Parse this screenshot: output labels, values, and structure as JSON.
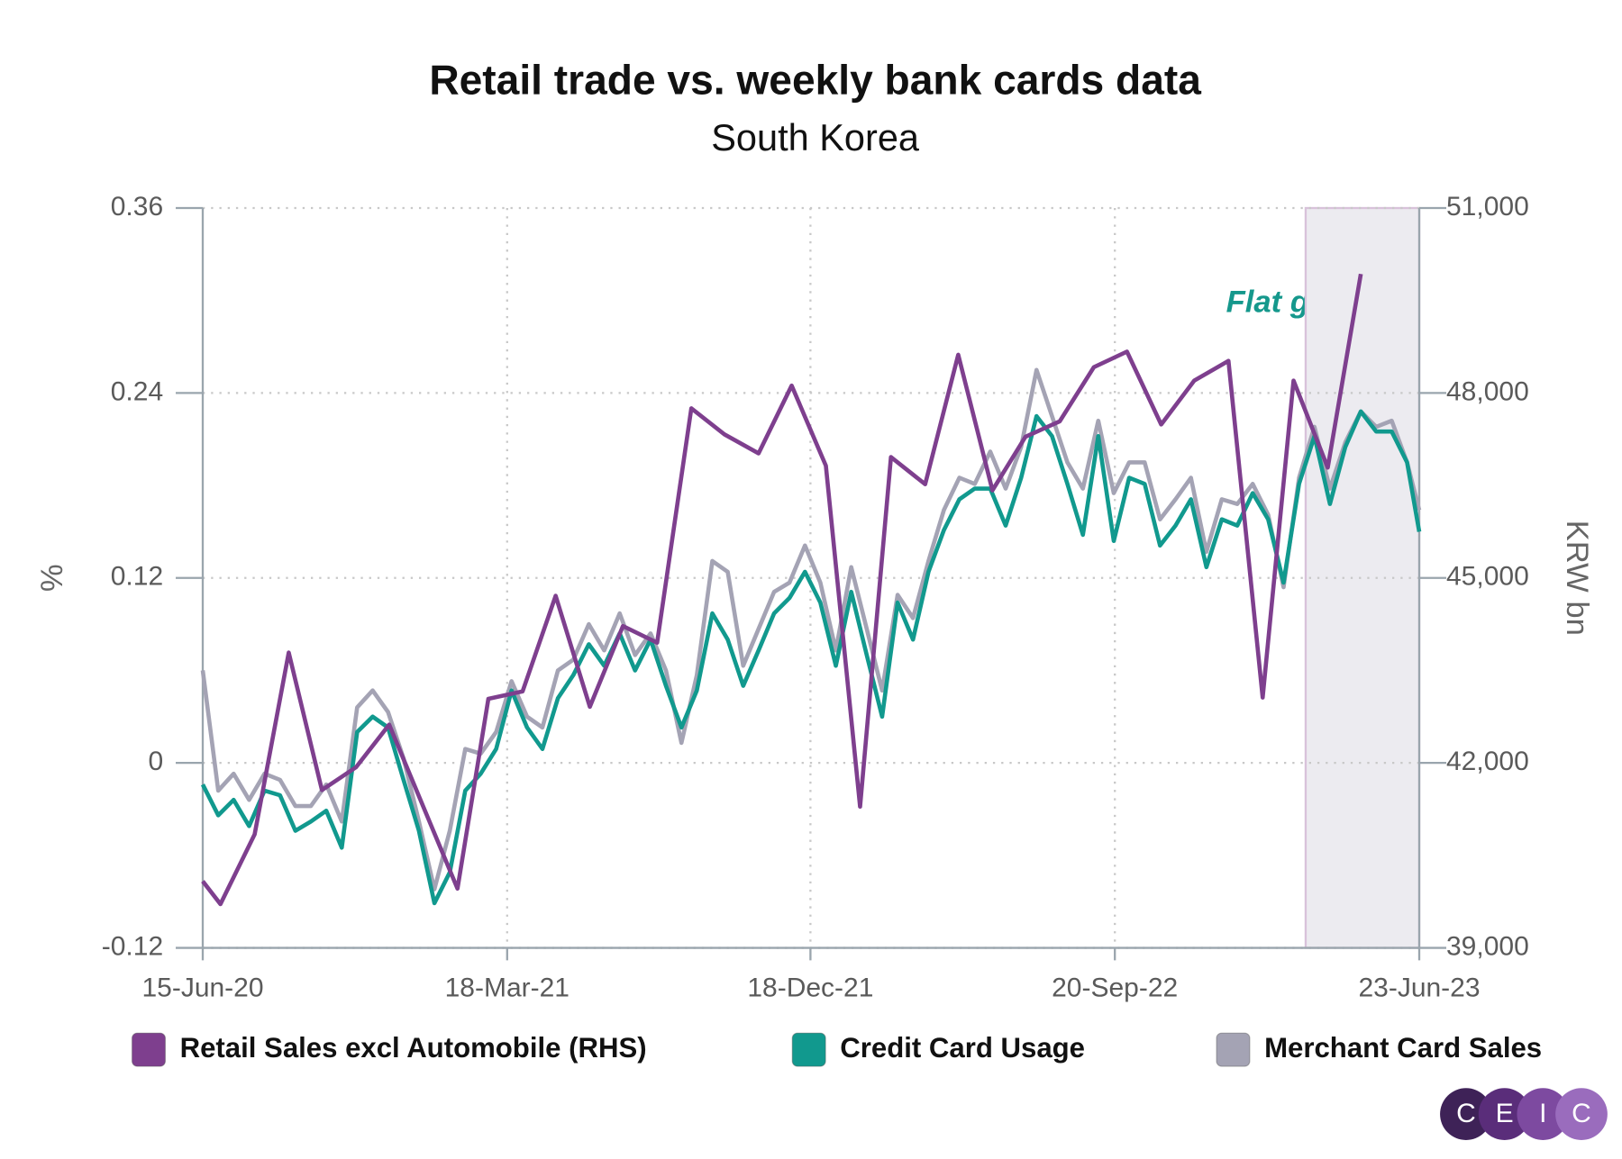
{
  "chart_data": {
    "type": "line",
    "title": "Retail trade vs. weekly bank cards data",
    "subtitle": "South Korea",
    "ylabel": "%",
    "y2label": "KRW bn",
    "annotation": "Flat growth",
    "highlight_range": [
      "2023-03-12",
      "2023-06-23"
    ],
    "highlight_color": "#ecebf0",
    "grid": true,
    "xlim": [
      "2020-06-15",
      "2023-06-23"
    ],
    "xticks": [
      {
        "value": "2020-06-15",
        "label": "15-Jun-20"
      },
      {
        "value": "2021-03-18",
        "label": "18-Mar-21"
      },
      {
        "value": "2021-12-18",
        "label": "18-Dec-21"
      },
      {
        "value": "2022-09-20",
        "label": "20-Sep-22"
      },
      {
        "value": "2023-06-23",
        "label": "23-Jun-23"
      }
    ],
    "ylim": [
      -0.12,
      0.36
    ],
    "yticks": [
      -0.12,
      0,
      0.12,
      0.24,
      0.36
    ],
    "y2lim": [
      39000,
      51000
    ],
    "y2ticks": [
      {
        "value": 39000,
        "label": "39,000"
      },
      {
        "value": 42000,
        "label": "42,000"
      },
      {
        "value": 45000,
        "label": "45,000"
      },
      {
        "value": 48000,
        "label": "48,000"
      },
      {
        "value": 51000,
        "label": "51,000"
      }
    ],
    "series": [
      {
        "name": "Retail Sales excl Automobile (RHS)",
        "color": "#7e3f8e",
        "axis": "y2",
        "x": [
          "2020-06-15",
          "2020-07-01",
          "2020-08-01",
          "2020-09-01",
          "2020-10-01",
          "2020-11-01",
          "2020-12-01",
          "2021-01-01",
          "2021-02-01",
          "2021-03-01",
          "2021-04-01",
          "2021-05-01",
          "2021-06-01",
          "2021-07-01",
          "2021-08-01",
          "2021-09-01",
          "2021-10-01",
          "2021-11-01",
          "2021-12-01",
          "2022-01-01",
          "2022-02-01",
          "2022-03-01",
          "2022-04-01",
          "2022-05-01",
          "2022-06-01",
          "2022-07-01",
          "2022-08-01",
          "2022-09-01",
          "2022-10-01",
          "2022-11-01",
          "2022-12-01",
          "2023-01-01",
          "2023-02-01",
          "2023-03-01",
          "2023-04-01",
          "2023-05-01"
        ],
        "values": [
          40080,
          39710,
          40840,
          43790,
          41560,
          41930,
          42620,
          41290,
          39960,
          43040,
          43160,
          44710,
          42910,
          44220,
          43950,
          47750,
          47330,
          47020,
          48120,
          46820,
          41290,
          46960,
          46520,
          48620,
          46420,
          47290,
          47540,
          48420,
          48670,
          47490,
          48200,
          48520,
          43060,
          48200,
          46790,
          49930
        ]
      },
      {
        "name": "Credit Card Usage",
        "color": "#11998e",
        "x": [
          "2020-06-15",
          "2020-06-29",
          "2020-07-13",
          "2020-07-27",
          "2020-08-10",
          "2020-08-24",
          "2020-09-07",
          "2020-09-21",
          "2020-10-05",
          "2020-10-19",
          "2020-11-02",
          "2020-11-16",
          "2020-11-30",
          "2020-12-14",
          "2020-12-28",
          "2021-01-11",
          "2021-01-25",
          "2021-02-08",
          "2021-02-22",
          "2021-03-08",
          "2021-03-22",
          "2021-04-05",
          "2021-04-19",
          "2021-05-03",
          "2021-05-17",
          "2021-05-31",
          "2021-06-14",
          "2021-06-28",
          "2021-07-12",
          "2021-07-26",
          "2021-08-09",
          "2021-08-23",
          "2021-09-06",
          "2021-09-20",
          "2021-10-04",
          "2021-10-18",
          "2021-11-01",
          "2021-11-15",
          "2021-11-29",
          "2021-12-13",
          "2021-12-27",
          "2022-01-10",
          "2022-01-24",
          "2022-02-07",
          "2022-02-21",
          "2022-03-07",
          "2022-03-21",
          "2022-04-04",
          "2022-04-18",
          "2022-05-02",
          "2022-05-16",
          "2022-05-30",
          "2022-06-13",
          "2022-06-27",
          "2022-07-11",
          "2022-07-25",
          "2022-08-08",
          "2022-08-22",
          "2022-09-05",
          "2022-09-19",
          "2022-10-03",
          "2022-10-17",
          "2022-10-31",
          "2022-11-14",
          "2022-11-28",
          "2022-12-12",
          "2022-12-26",
          "2023-01-09",
          "2023-01-23",
          "2023-02-06",
          "2023-02-20",
          "2023-03-06",
          "2023-03-20",
          "2023-04-03",
          "2023-04-17",
          "2023-05-01",
          "2023-05-15",
          "2023-05-29",
          "2023-06-12",
          "2023-06-23"
        ],
        "values": [
          -0.014,
          -0.034,
          -0.024,
          -0.041,
          -0.018,
          -0.021,
          -0.044,
          -0.038,
          -0.031,
          -0.055,
          0.02,
          0.03,
          0.023,
          -0.011,
          -0.044,
          -0.091,
          -0.071,
          -0.018,
          -0.007,
          0.009,
          0.047,
          0.023,
          0.009,
          0.042,
          0.057,
          0.077,
          0.063,
          0.084,
          0.06,
          0.08,
          0.05,
          0.023,
          0.047,
          0.097,
          0.08,
          0.05,
          0.073,
          0.097,
          0.107,
          0.124,
          0.104,
          0.063,
          0.111,
          0.07,
          0.03,
          0.104,
          0.08,
          0.124,
          0.151,
          0.171,
          0.178,
          0.178,
          0.154,
          0.185,
          0.225,
          0.212,
          0.181,
          0.148,
          0.212,
          0.144,
          0.185,
          0.181,
          0.141,
          0.154,
          0.171,
          0.127,
          0.158,
          0.154,
          0.175,
          0.158,
          0.117,
          0.181,
          0.212,
          0.168,
          0.205,
          0.228,
          0.215,
          0.215,
          0.195,
          0.15
        ]
      },
      {
        "name": "Merchant Card Sales",
        "color": "#a4a3b4",
        "x": [
          "2020-06-15",
          "2020-06-29",
          "2020-07-13",
          "2020-07-27",
          "2020-08-10",
          "2020-08-24",
          "2020-09-07",
          "2020-09-21",
          "2020-10-05",
          "2020-10-19",
          "2020-11-02",
          "2020-11-16",
          "2020-11-30",
          "2020-12-14",
          "2020-12-28",
          "2021-01-11",
          "2021-01-25",
          "2021-02-08",
          "2021-02-22",
          "2021-03-08",
          "2021-03-22",
          "2021-04-05",
          "2021-04-19",
          "2021-05-03",
          "2021-05-17",
          "2021-05-31",
          "2021-06-14",
          "2021-06-28",
          "2021-07-12",
          "2021-07-26",
          "2021-08-09",
          "2021-08-23",
          "2021-09-06",
          "2021-09-20",
          "2021-10-04",
          "2021-10-18",
          "2021-11-01",
          "2021-11-15",
          "2021-11-29",
          "2021-12-13",
          "2021-12-27",
          "2022-01-10",
          "2022-01-24",
          "2022-02-07",
          "2022-02-21",
          "2022-03-07",
          "2022-03-21",
          "2022-04-04",
          "2022-04-18",
          "2022-05-02",
          "2022-05-16",
          "2022-05-30",
          "2022-06-13",
          "2022-06-27",
          "2022-07-11",
          "2022-07-25",
          "2022-08-08",
          "2022-08-22",
          "2022-09-05",
          "2022-09-19",
          "2022-10-03",
          "2022-10-17",
          "2022-10-31",
          "2022-11-14",
          "2022-11-28",
          "2022-12-12",
          "2022-12-26",
          "2023-01-09",
          "2023-01-23",
          "2023-02-06",
          "2023-02-20",
          "2023-03-06",
          "2023-03-20",
          "2023-04-03",
          "2023-04-17",
          "2023-05-01",
          "2023-05-15",
          "2023-05-29",
          "2023-06-12",
          "2023-06-23"
        ],
        "values": [
          0.06,
          -0.018,
          -0.007,
          -0.024,
          -0.007,
          -0.011,
          -0.028,
          -0.028,
          -0.014,
          -0.038,
          0.036,
          0.047,
          0.033,
          0.003,
          -0.038,
          -0.082,
          -0.044,
          0.009,
          0.006,
          0.02,
          0.053,
          0.03,
          0.023,
          0.06,
          0.067,
          0.09,
          0.073,
          0.097,
          0.07,
          0.084,
          0.06,
          0.013,
          0.057,
          0.131,
          0.124,
          0.063,
          0.087,
          0.111,
          0.117,
          0.141,
          0.117,
          0.073,
          0.127,
          0.087,
          0.047,
          0.109,
          0.094,
          0.131,
          0.164,
          0.185,
          0.181,
          0.202,
          0.178,
          0.205,
          0.255,
          0.225,
          0.195,
          0.178,
          0.222,
          0.175,
          0.195,
          0.195,
          0.158,
          0.171,
          0.185,
          0.137,
          0.171,
          0.168,
          0.181,
          0.161,
          0.114,
          0.185,
          0.218,
          0.178,
          0.208,
          0.228,
          0.218,
          0.222,
          0.195,
          0.164
        ]
      }
    ]
  },
  "logo": [
    "C",
    "E",
    "I",
    "C"
  ]
}
